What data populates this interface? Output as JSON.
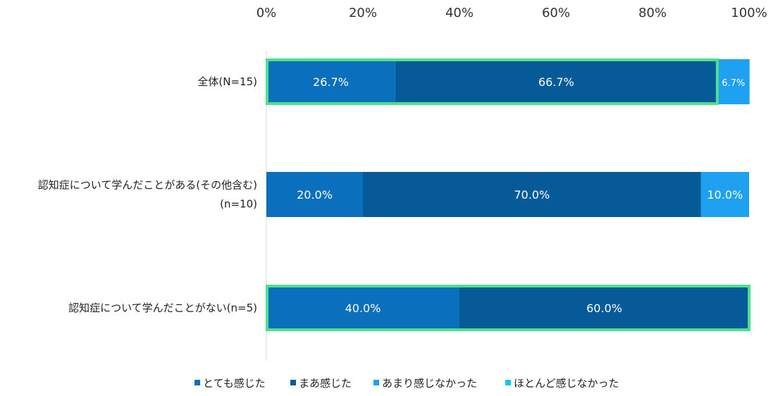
{
  "chart_data": {
    "type": "bar",
    "orientation": "horizontal",
    "stacked": true,
    "x_ticks": [
      "0%",
      "20%",
      "40%",
      "60%",
      "80%",
      "100%"
    ],
    "xlim": [
      0,
      100
    ],
    "x_axis_position": "top",
    "grid": false,
    "legend_position": "bottom",
    "categories": [
      [
        "全体(N=15)"
      ],
      [
        "認知症について学んだことがある(その他含む)",
        "(n=10)"
      ],
      [
        "認知症について学んだことがない(n=5)"
      ]
    ],
    "highlighted_categories": [
      0,
      2
    ],
    "highlight_color": "#4fe08e",
    "series": [
      {
        "name": "とても感じた",
        "color": "#0a70bd",
        "values": [
          26.7,
          20.0,
          40.0
        ],
        "labels": [
          "26.7%",
          "20.0%",
          "40.0%"
        ]
      },
      {
        "name": "まあ感じた",
        "color": "#065a98",
        "values": [
          66.7,
          70.0,
          60.0
        ],
        "labels": [
          "66.7%",
          "70.0%",
          "60.0%"
        ]
      },
      {
        "name": "あまり感じなかった",
        "color": "#1fa0f0",
        "values": [
          6.7,
          10.0,
          0
        ],
        "labels": [
          "6.7%",
          "10.0%",
          ""
        ]
      },
      {
        "name": "ほとんど感じなかった",
        "color": "#12c6ec",
        "values": [
          0,
          0,
          0
        ],
        "labels": [
          "",
          "",
          ""
        ]
      }
    ]
  }
}
